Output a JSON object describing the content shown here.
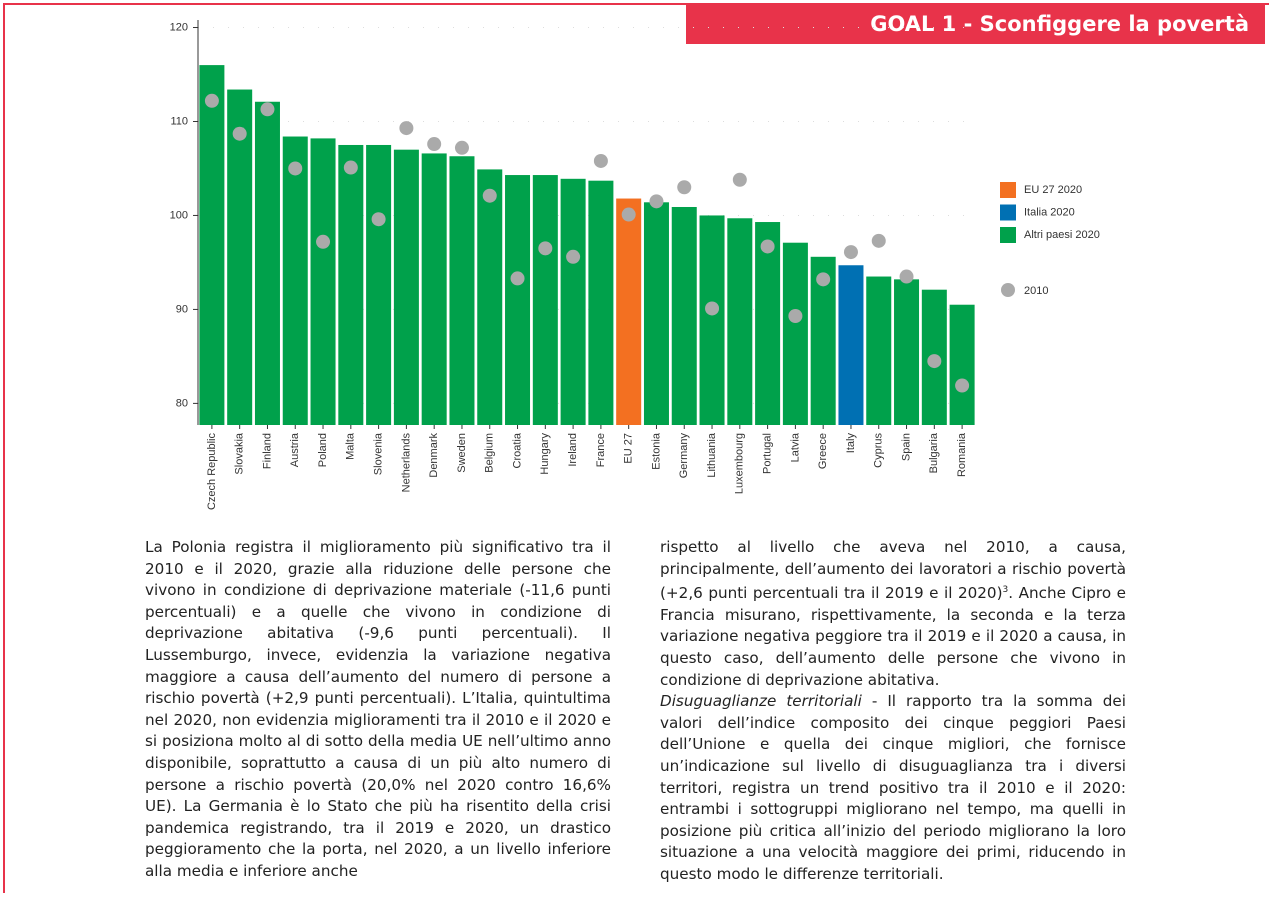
{
  "header": {
    "title": "GOAL 1 - Sconfiggere la povertà"
  },
  "chart_data": {
    "type": "bar",
    "categories": [
      "Czech Republic",
      "Slovakia",
      "Finland",
      "Austria",
      "Poland",
      "Malta",
      "Slovenia",
      "Netherlands",
      "Denmark",
      "Sweden",
      "Belgium",
      "Croatia",
      "Hungary",
      "Ireland",
      "France",
      "EU 27",
      "Estonia",
      "Germany",
      "Lithuania",
      "Luxembourg",
      "Portugal",
      "Latvia",
      "Greece",
      "Italy",
      "Cyprus",
      "Spain",
      "Bulgaria",
      "Romania"
    ],
    "values": [
      116.0,
      113.4,
      112.1,
      108.4,
      108.2,
      107.5,
      107.5,
      107.0,
      106.6,
      106.3,
      104.9,
      104.3,
      104.3,
      103.9,
      103.7,
      101.8,
      101.4,
      100.9,
      100.0,
      99.7,
      99.3,
      97.1,
      95.6,
      94.7,
      93.5,
      93.2,
      92.1,
      90.5
    ],
    "colors": [
      "#00a14b",
      "#00a14b",
      "#00a14b",
      "#00a14b",
      "#00a14b",
      "#00a14b",
      "#00a14b",
      "#00a14b",
      "#00a14b",
      "#00a14b",
      "#00a14b",
      "#00a14b",
      "#00a14b",
      "#00a14b",
      "#00a14b",
      "#f37021",
      "#00a14b",
      "#00a14b",
      "#00a14b",
      "#00a14b",
      "#00a14b",
      "#00a14b",
      "#00a14b",
      "#0070b3",
      "#00a14b",
      "#00a14b",
      "#00a14b",
      "#00a14b"
    ],
    "legend": [
      {
        "name": "EU 27 2020",
        "color": "#f37021"
      },
      {
        "name": "Italia 2020",
        "color": "#0070b3"
      },
      {
        "name": "Altri paesi 2020",
        "color": "#00a14b"
      }
    ],
    "markers": {
      "name": "2010",
      "color": "#aaaaaa",
      "values": [
        112.2,
        108.7,
        111.3,
        105.0,
        97.2,
        105.1,
        99.6,
        109.3,
        107.6,
        107.2,
        102.1,
        93.3,
        96.5,
        95.6,
        105.8,
        100.1,
        101.5,
        103.0,
        90.1,
        103.8,
        96.7,
        89.3,
        93.2,
        96.1,
        97.3,
        93.5,
        84.5,
        81.9
      ]
    },
    "ylim": [
      77.7,
      120.8
    ],
    "yticks": [
      80,
      90,
      100,
      110,
      120
    ],
    "grid": true
  },
  "text": {
    "left": "La Polonia registra il miglioramento più significativo tra il 2010 e il 2020, grazie alla riduzione delle persone che vivono in condizione di deprivazione materiale (-11,6 punti percentuali) e a quelle che vivono in condizione di deprivazione abitativa (-9,6 punti percentuali). Il Lussemburgo, invece, evidenzia la variazione negativa maggiore a causa dell’aumento del numero di persone a rischio povertà (+2,9 punti percentuali). L’Italia, quintultima nel 2020, non evidenzia miglioramenti tra il 2010 e il 2020 e si posiziona molto al di sotto della media UE nell’ultimo anno disponibile, soprattutto a causa di un più alto numero di persone a rischio povertà (20,0% nel 2020 contro 16,6% UE). La Germania è lo Stato che più ha risentito della crisi pandemica registrando, tra il 2019 e 2020, un drastico peggioramento che la porta, nel 2020, a un livello inferiore alla media e inferiore anche",
    "right_1a": "rispetto al livello che aveva nel 2010, a causa, principalmente, dell’aumento dei lavoratori a rischio povertà (+2,6 punti percentuali tra il 2019 e il 2020)",
    "right_1_note": "3",
    "right_1b": ". Anche Cipro e Francia misurano, rispettivamente, la seconda e la terza variazione negativa peggiore tra il 2019 e il 2020 a causa, in questo caso, dell’aumento delle persone che vivono in condizione di deprivazione abitativa.",
    "right_2_title": "Disuguaglianze territoriali",
    "right_2": " - Il rapporto tra la somma dei valori dell’indice composito dei cinque peggiori Paesi dell’Unione e quella dei cinque migliori, che fornisce un’indicazione sul livello di disuguaglianza tra i diversi territori, registra un trend positivo tra il 2010 e il 2020: entrambi i sottogruppi migliorano nel tempo, ma quelli in posizione più critica all’inizio del periodo migliorano la loro situazione a una velocità maggiore dei primi, riducendo in questo modo le differenze territoriali."
  }
}
